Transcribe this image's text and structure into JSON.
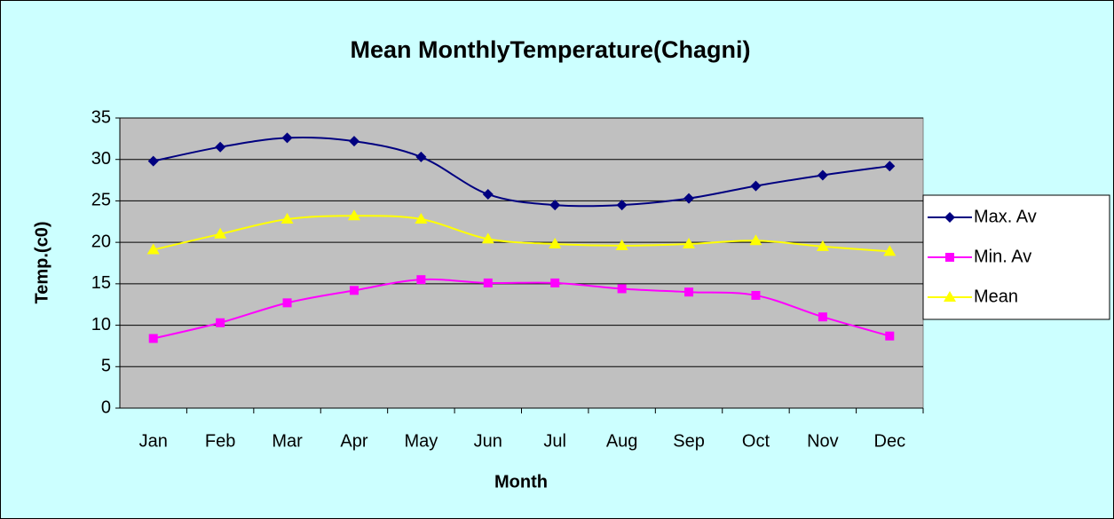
{
  "chart_data": {
    "type": "line",
    "title": "Mean MonthlyTemperature(Chagni)",
    "x_label": "Month",
    "y_label": "Temp.(c0)",
    "categories": [
      "Jan",
      "Feb",
      "Mar",
      "Apr",
      "May",
      "Jun",
      "Jul",
      "Aug",
      "Sep",
      "Oct",
      "Nov",
      "Dec"
    ],
    "series": [
      {
        "name": "Max. Av",
        "color": "#000080",
        "marker": "diamond",
        "values": [
          29.8,
          31.5,
          32.6,
          32.2,
          30.3,
          25.8,
          24.5,
          24.5,
          25.3,
          26.8,
          28.1,
          29.2
        ]
      },
      {
        "name": "Min. Av",
        "color": "#ff00ff",
        "marker": "square",
        "values": [
          8.4,
          10.3,
          12.7,
          14.2,
          15.5,
          15.1,
          15.1,
          14.4,
          14.0,
          13.6,
          11.0,
          8.7
        ]
      },
      {
        "name": "Mean",
        "color": "#ffff00",
        "marker": "triangle",
        "values": [
          19.1,
          21.0,
          22.8,
          23.2,
          22.8,
          20.4,
          19.8,
          19.6,
          19.8,
          20.2,
          19.5,
          18.9
        ]
      }
    ],
    "ylim": [
      0,
      35
    ],
    "yticks": [
      0,
      5,
      10,
      15,
      20,
      25,
      30,
      35
    ],
    "grid": true,
    "legend": "right"
  }
}
